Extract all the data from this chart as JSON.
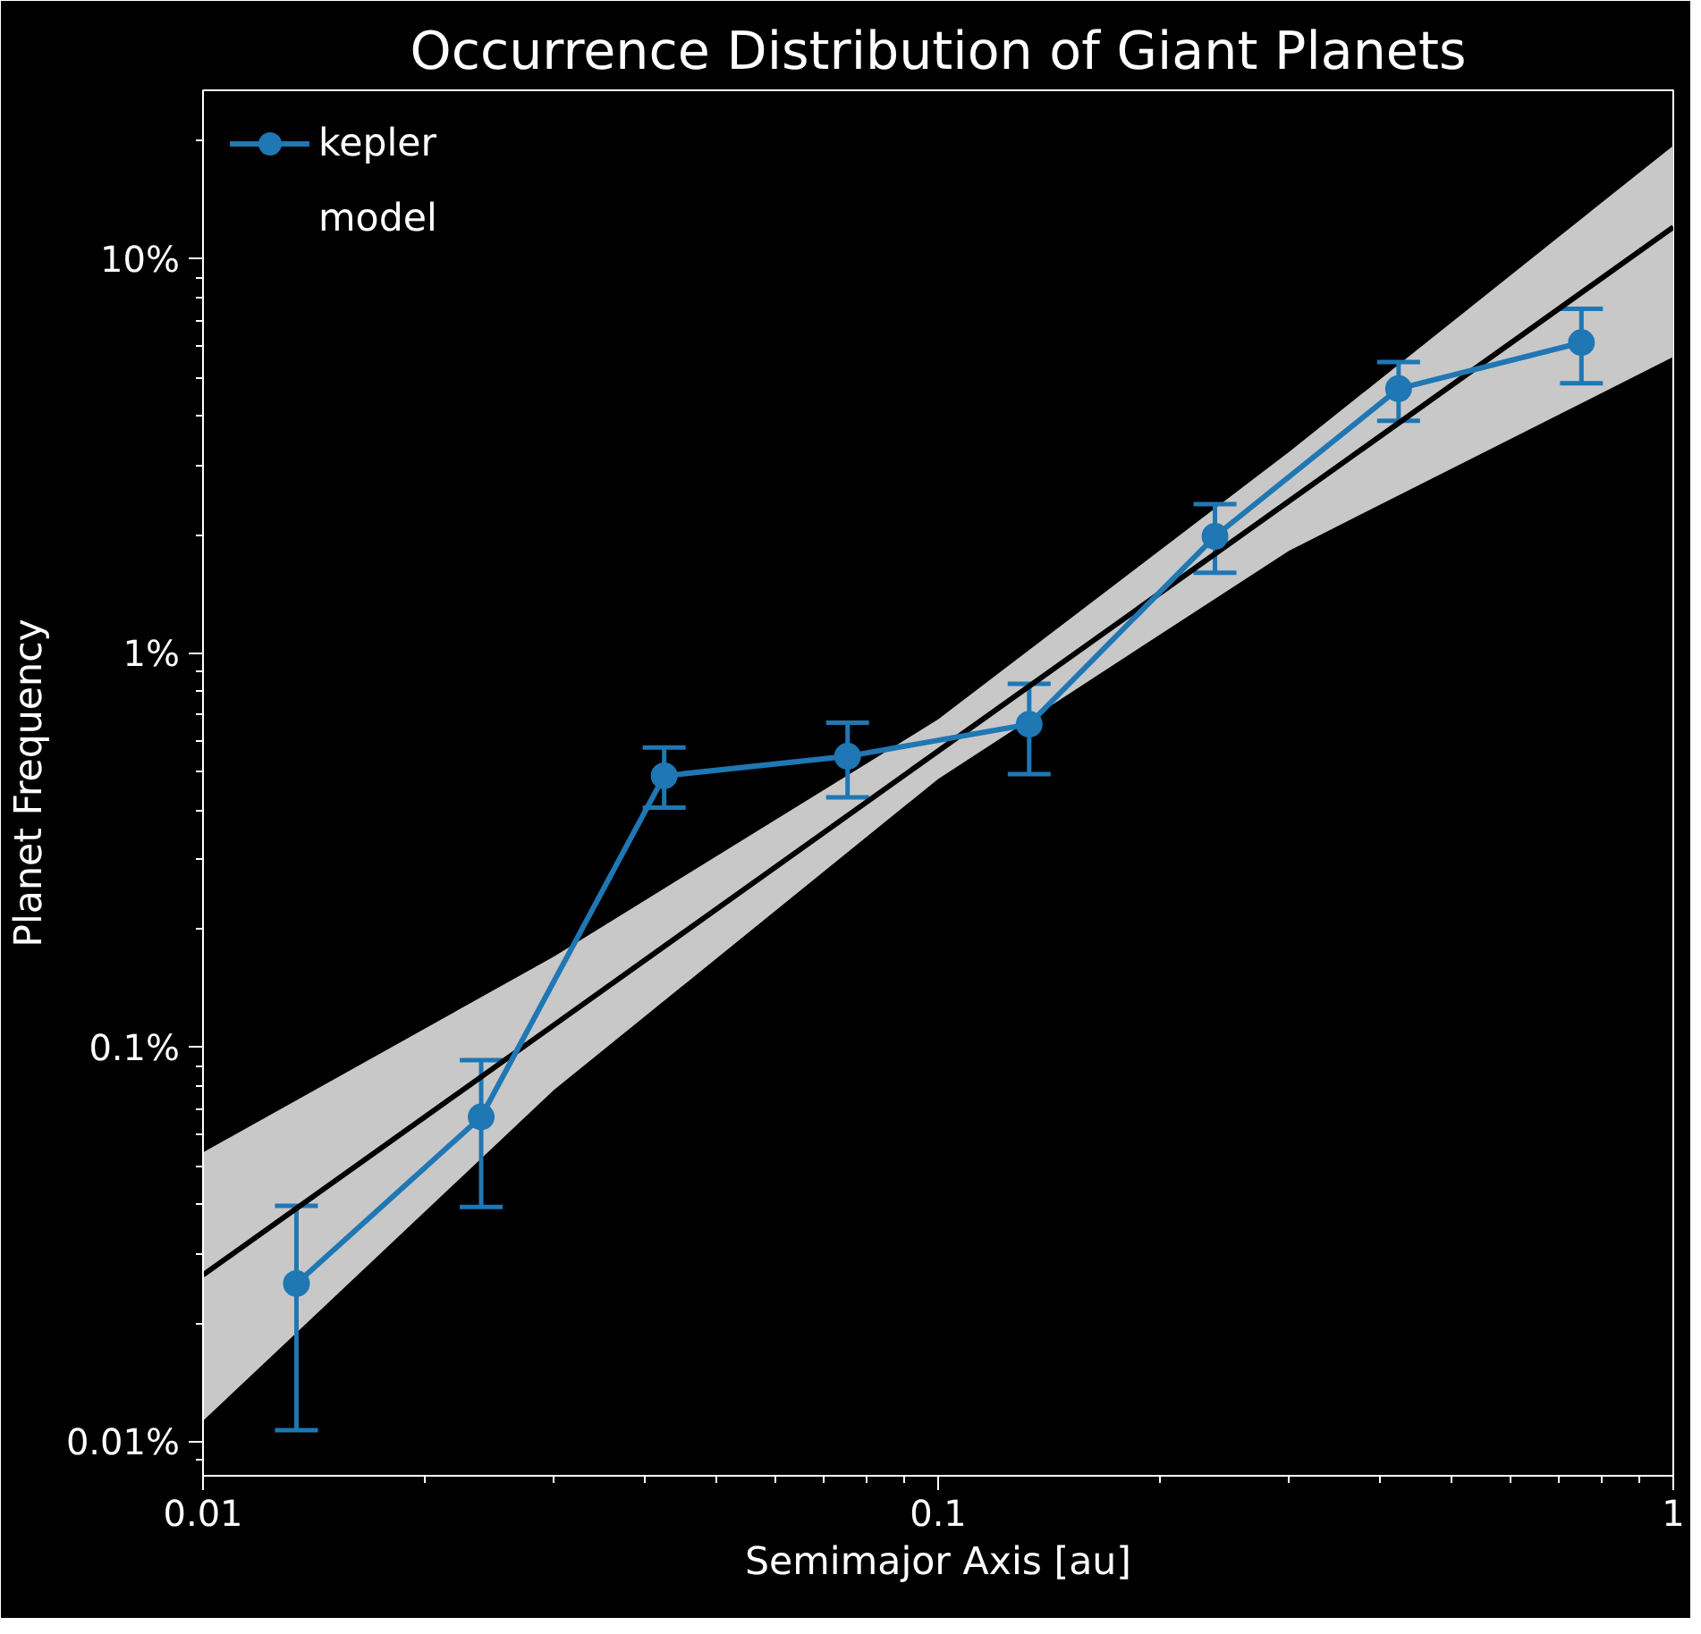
{
  "chart_data": {
    "type": "line",
    "title": "Occurrence Distribution of Giant Planets",
    "xlabel": "Semimajor Axis [au]",
    "ylabel": "Planet Frequency",
    "log": "xy",
    "xlim": [
      0.01,
      1
    ],
    "ylim": [
      0.0082,
      26.8
    ],
    "xticks": [
      0.01,
      0.1,
      1
    ],
    "yticks": [
      {
        "value": 0.01,
        "label": "0.01%"
      },
      {
        "value": 0.1,
        "label": "0.1%"
      },
      {
        "value": 1,
        "label": "1%"
      },
      {
        "value": 10,
        "label": "10%"
      }
    ],
    "grid": false,
    "legend": "top left",
    "series": [
      {
        "name": "kepler",
        "color": "#1f77b4",
        "marker": "circle",
        "x": [
          0.0134,
          0.0239,
          0.0424,
          0.0753,
          0.133,
          0.238,
          0.423,
          0.75
        ],
        "values": [
          0.0252,
          0.0667,
          0.489,
          0.548,
          0.661,
          1.98,
          4.69,
          6.14
        ],
        "errors": [
          [
            0.0107,
            0.0397
          ],
          [
            0.0394,
            0.0929
          ],
          [
            0.406,
            0.577
          ],
          [
            0.431,
            0.667
          ],
          [
            0.494,
            0.837
          ],
          [
            1.6,
            2.39
          ],
          [
            3.89,
            5.48
          ],
          [
            4.84,
            7.48
          ]
        ]
      },
      {
        "name": "model",
        "color": "#000000",
        "marker": "none",
        "x": [
          0.01,
          0.03,
          0.1,
          0.3,
          1
        ],
        "values": [
          0.0265,
          0.114,
          0.565,
          2.43,
          12.05
        ],
        "lower": [
          0.0113,
          0.078,
          0.48,
          1.82,
          5.65
        ],
        "upper": [
          0.0542,
          0.17,
          0.68,
          3.24,
          19.4
        ]
      }
    ]
  }
}
